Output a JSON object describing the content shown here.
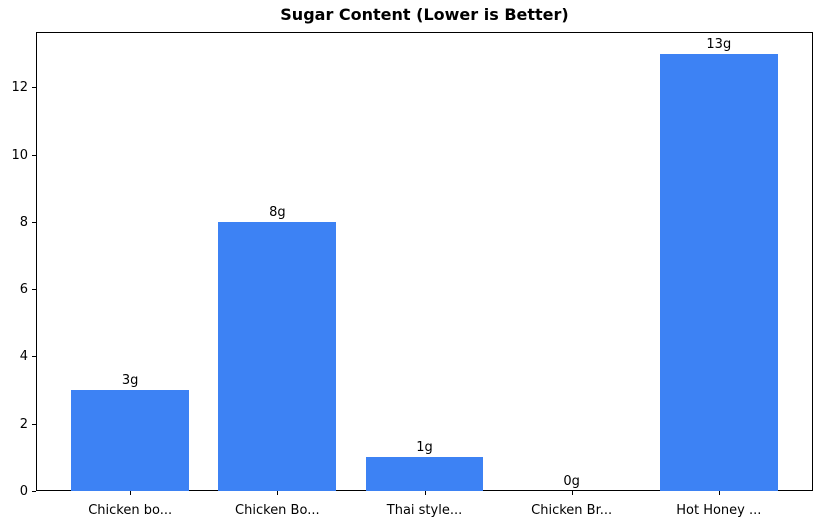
{
  "figure": {
    "background_color": "#ffffff",
    "axis_color": "#000000",
    "text_color": "#000000"
  },
  "chart_data": {
    "type": "bar",
    "title": "Sugar Content (Lower is Better)",
    "categories": [
      "Chicken bo...",
      "Chicken Bo...",
      "Thai style...",
      "Chicken Br...",
      "Hot Honey ..."
    ],
    "values": [
      3,
      8,
      1,
      0,
      13
    ],
    "bar_labels": [
      "3g",
      "8g",
      "1g",
      "0g",
      "13g"
    ],
    "bar_color": "#3d82f4",
    "xlabel": "",
    "ylabel": "",
    "yticks": [
      0,
      2,
      4,
      6,
      8,
      10,
      12
    ],
    "ylim": [
      0,
      13.65
    ],
    "grid": false,
    "legend_position": "none"
  }
}
